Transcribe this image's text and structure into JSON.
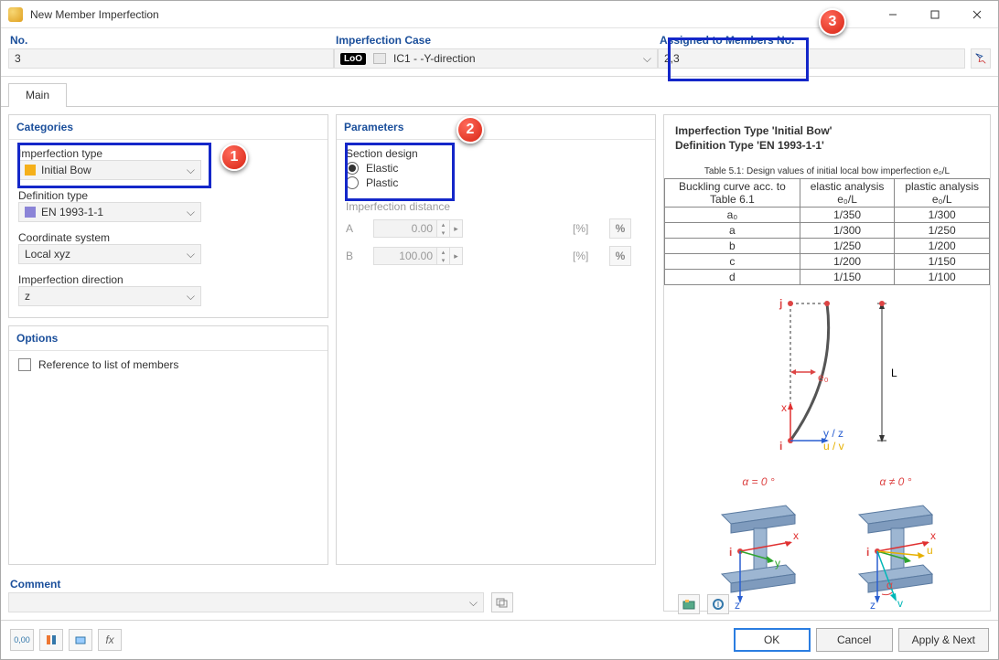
{
  "window": {
    "title": "New Member Imperfection"
  },
  "header": {
    "no_label": "No.",
    "no_value": "3",
    "case_label": "Imperfection Case",
    "case_badge": "LoO",
    "case_value": "IC1 - -Y-direction",
    "members_label": "Assigned to Members No.",
    "members_value": "2,3"
  },
  "tabs": {
    "main": "Main"
  },
  "categories": {
    "panel_title": "Categories",
    "imperfection_type_label": "Imperfection type",
    "imperfection_type_value": "Initial Bow",
    "imperfection_type_swatch": "#f5b01a",
    "definition_type_label": "Definition type",
    "definition_type_value": "EN 1993-1-1",
    "definition_type_swatch": "#8b84d7",
    "coord_system_label": "Coordinate system",
    "coord_system_value": "Local xyz",
    "imperfection_dir_label": "Imperfection direction",
    "imperfection_dir_value": "z"
  },
  "options": {
    "panel_title": "Options",
    "reference_label": "Reference to list of members"
  },
  "parameters": {
    "panel_title": "Parameters",
    "section_design_label": "Section design",
    "elastic_label": "Elastic",
    "plastic_label": "Plastic",
    "distance_label": "Imperfection distance",
    "row_a": "A",
    "row_b": "B",
    "val_a": "0.00",
    "val_b": "100.00",
    "unit": "[%]",
    "pct": "%"
  },
  "right": {
    "title1": "Imperfection Type 'Initial Bow'",
    "title2": "Definition Type 'EN 1993-1-1'",
    "table_caption": "Table 5.1: Design values of initial local bow imperfection e₀/L",
    "table_col1": "Buckling curve acc. to Table 6.1",
    "table_col2": "elastic analysis e₀/L",
    "table_col3": "plastic analysis e₀/L",
    "rows": [
      [
        "a₀",
        "1/350",
        "1/300"
      ],
      [
        "a",
        "1/300",
        "1/250"
      ],
      [
        "b",
        "1/250",
        "1/200"
      ],
      [
        "c",
        "1/200",
        "1/150"
      ],
      [
        "d",
        "1/150",
        "1/100"
      ]
    ],
    "diagram": {
      "j": "j",
      "i": "i",
      "x": "x",
      "e0": "e₀",
      "yz": "y / z",
      "uv": "u / v",
      "L": "L"
    },
    "alpha0": "α = 0 °",
    "alphan": "α ≠ 0 °",
    "beam_axes": {
      "x": "x",
      "y": "y",
      "z": "z",
      "i": "i",
      "u": "u",
      "v": "v",
      "alpha": "α"
    }
  },
  "comment": {
    "label": "Comment"
  },
  "footer": {
    "ok": "OK",
    "cancel": "Cancel",
    "apply_next": "Apply & Next"
  },
  "callouts": {
    "c1": "1",
    "c2": "2",
    "c3": "3"
  },
  "colors": {
    "accent": "#1b4f9b",
    "highlight": "#1427c9",
    "callout": "#d72414",
    "beam_fill": "#7f9bbd",
    "beam_edge": "#5a7aa0",
    "axis_x": "#e03030",
    "axis_y": "#2fa52f",
    "axis_z": "#2a5fd1",
    "axis_u": "#e6b000",
    "axis_v": "#00b7b7"
  }
}
